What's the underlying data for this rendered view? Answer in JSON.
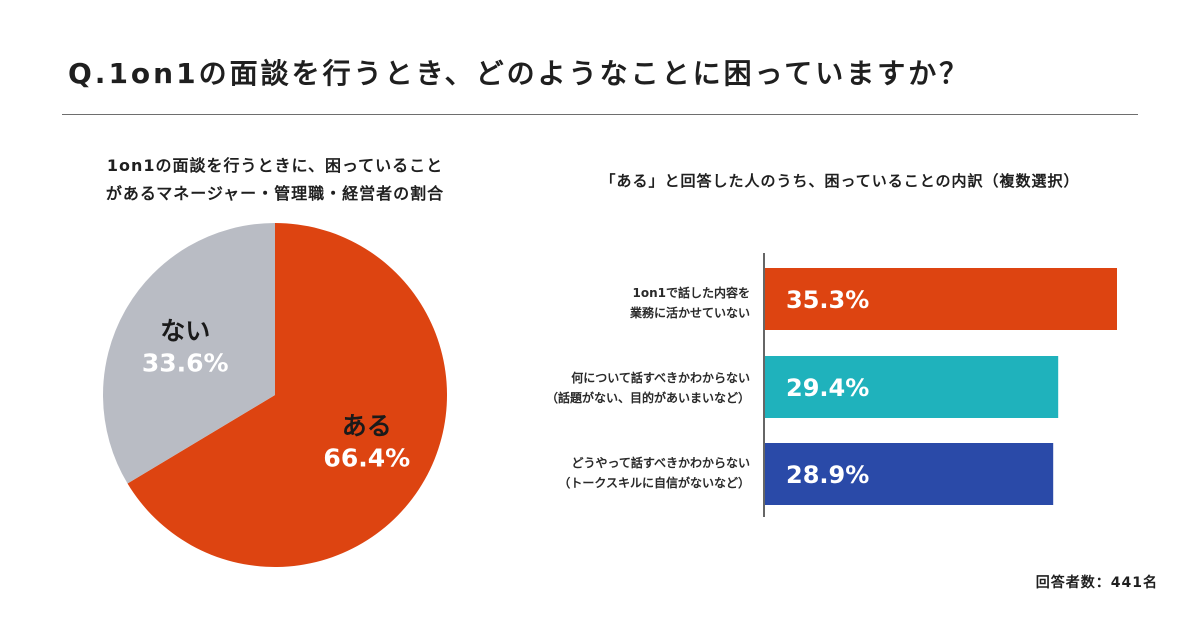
{
  "title": "Q.1on1の面談を行うとき、どのようなことに困っていますか？",
  "footnote": "回答者数：441名",
  "chart_data": [
    {
      "type": "pie",
      "title_lines": [
        "1on1の面談を行うときに、困っていること",
        "があるマネージャー・管理職・経営者の割合"
      ],
      "slices": [
        {
          "label": "ある",
          "value": 66.4,
          "value_label": "66.4%",
          "color": "#dd4411"
        },
        {
          "label": "ない",
          "value": 33.6,
          "value_label": "33.6%",
          "color": "#b9bcc4"
        }
      ]
    },
    {
      "type": "bar",
      "orientation": "horizontal",
      "title": "「ある」と回答した人のうち、困っていることの内訳（複数選択）",
      "categories": [
        [
          "1on1で話した内容を",
          "業務に活かせていない"
        ],
        [
          "何について話すべきかわからない",
          "（話題がない、目的があいまいなど）"
        ],
        [
          "どうやって話すべきかわからない",
          "（トークスキルに自信がないなど）"
        ]
      ],
      "values": [
        35.3,
        29.4,
        28.9
      ],
      "value_labels": [
        "35.3%",
        "29.4%",
        "28.9%"
      ],
      "colors": [
        "#dd4411",
        "#1fb2bc",
        "#2a4aa8"
      ],
      "xlim": [
        0,
        40
      ]
    }
  ]
}
